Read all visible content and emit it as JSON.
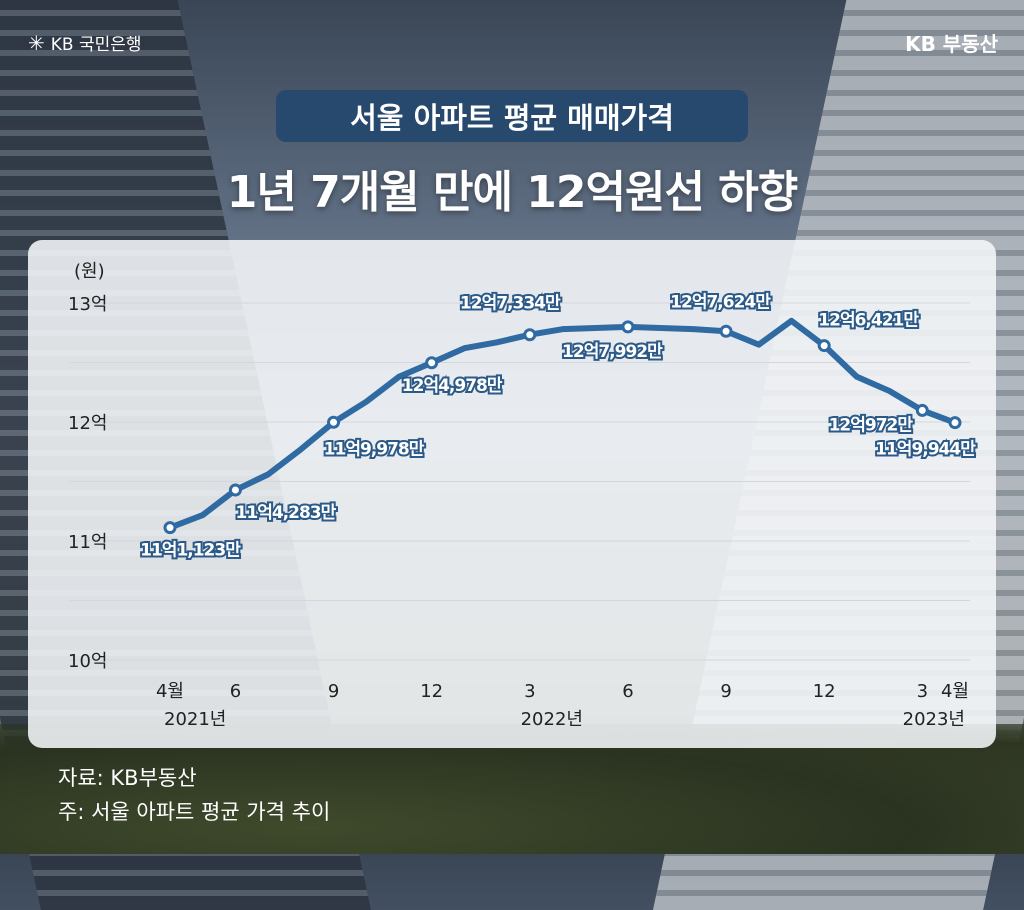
{
  "brand": {
    "left_logo": "KB 국민은행",
    "right_logo": "KB 부동산"
  },
  "tag": "서울 아파트 평균 매매가격",
  "headline": "1년 7개월 만에 12억원선 하향",
  "footer": {
    "source": "자료: KB부동산",
    "note": "주: 서울 아파트 평균 가격 추이"
  },
  "colors": {
    "line": "#2f6aa3",
    "tag_bg": "#27496e",
    "label_stroke": "#2c5a88"
  },
  "chart_data": {
    "type": "line",
    "title": "",
    "ylabel": "(원)",
    "ylim": [
      10,
      13
    ],
    "yticks": [
      {
        "v": 13,
        "label": "13억"
      },
      {
        "v": 12,
        "label": "12억"
      },
      {
        "v": 11,
        "label": "11억"
      },
      {
        "v": 10,
        "label": "10억"
      }
    ],
    "grid": true,
    "x": [
      "2021-04",
      "2021-05",
      "2021-06",
      "2021-07",
      "2021-08",
      "2021-09",
      "2021-10",
      "2021-11",
      "2021-12",
      "2022-01",
      "2022-02",
      "2022-03",
      "2022-04",
      "2022-05",
      "2022-06",
      "2022-07",
      "2022-08",
      "2022-09",
      "2022-10",
      "2022-11",
      "2022-12",
      "2023-01",
      "2023-02",
      "2023-03",
      "2023-04"
    ],
    "values": [
      11.1123,
      11.218,
      11.4283,
      11.56,
      11.77,
      11.9978,
      12.17,
      12.38,
      12.4978,
      12.62,
      12.67,
      12.7334,
      12.78,
      12.79,
      12.7992,
      12.79,
      12.78,
      12.7624,
      12.65,
      12.85,
      12.6421,
      12.38,
      12.26,
      12.0972,
      11.9944
    ],
    "xticks": [
      {
        "i": 0,
        "label": "4월"
      },
      {
        "i": 2,
        "label": "6"
      },
      {
        "i": 5,
        "label": "9"
      },
      {
        "i": 8,
        "label": "12"
      },
      {
        "i": 11,
        "label": "3"
      },
      {
        "i": 14,
        "label": "6"
      },
      {
        "i": 17,
        "label": "9"
      },
      {
        "i": 20,
        "label": "12"
      },
      {
        "i": 23,
        "label": "3"
      },
      {
        "i": 24,
        "label": "4월"
      }
    ],
    "year_labels": [
      {
        "i": 0,
        "label": "2021년"
      },
      {
        "i": 11,
        "label": "2022년"
      },
      {
        "i": 24,
        "label": "2023년"
      }
    ],
    "data_labels": [
      {
        "i": 0,
        "label": "11억1,123만"
      },
      {
        "i": 2,
        "label": "11억4,283만"
      },
      {
        "i": 5,
        "label": "11억9,978만"
      },
      {
        "i": 8,
        "label": "12억4,978만"
      },
      {
        "i": 11,
        "label": "12억7,334만"
      },
      {
        "i": 14,
        "label": "12억7,992만"
      },
      {
        "i": 17,
        "label": "12억7,624만"
      },
      {
        "i": 20,
        "label": "12억6,421만"
      },
      {
        "i": 23,
        "label": "12억972만"
      },
      {
        "i": 24,
        "label": "11억9,944만"
      }
    ]
  }
}
